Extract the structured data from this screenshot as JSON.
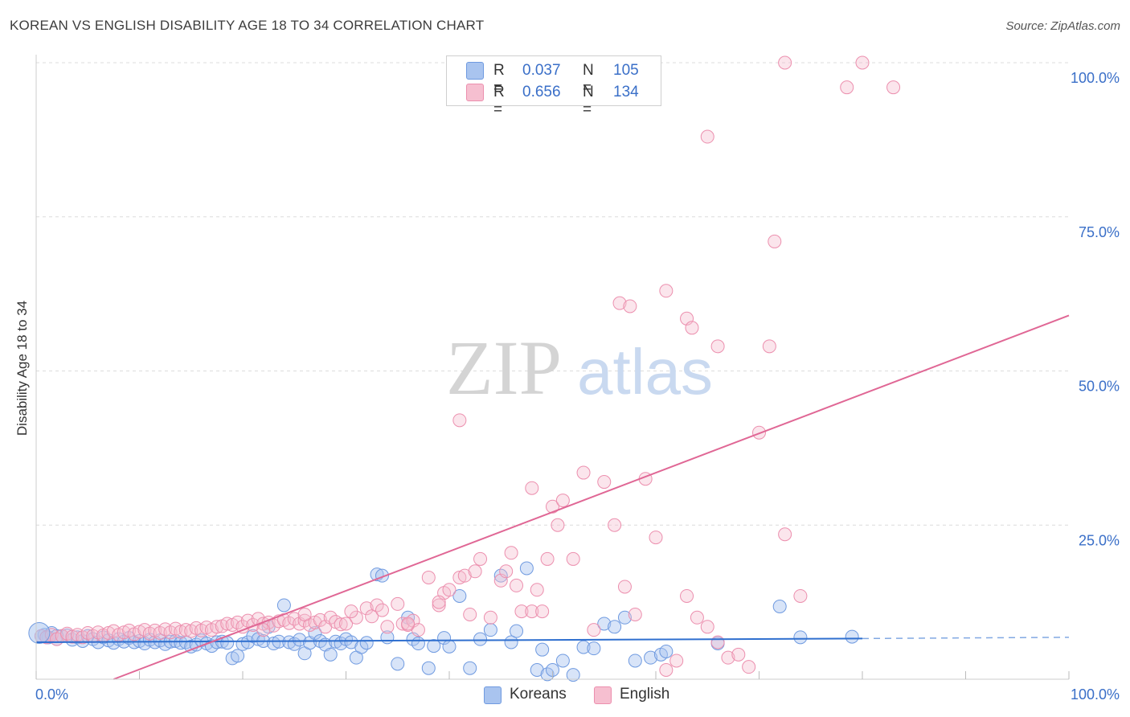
{
  "title": "KOREAN VS ENGLISH DISABILITY AGE 18 TO 34 CORRELATION CHART",
  "source": "Source: ZipAtlas.com",
  "watermark": {
    "zip": "ZIP",
    "atlas": "atlas"
  },
  "legend_top": {
    "rows": [
      {
        "r_label": "R =",
        "r_value": "0.037",
        "n_label": "N =",
        "n_value": "105",
        "color": "#a9c4ef",
        "border": "#6f9ae0"
      },
      {
        "r_label": "R =",
        "r_value": "0.656",
        "n_label": "N =",
        "n_value": "134",
        "color": "#f6bfd0",
        "border": "#ec8fae"
      }
    ]
  },
  "bottom_legend": [
    {
      "label": "Koreans",
      "color": "#a9c4ef",
      "border": "#6f9ae0"
    },
    {
      "label": "English",
      "color": "#f6bfd0",
      "border": "#ec8fae"
    }
  ],
  "colors": {
    "koreans": "#6f9ae0",
    "koreans_line": "#2f6fcf",
    "english": "#ec8fae",
    "english_line": "#e06795",
    "axis_text": "#3a6fc8",
    "grid": "#dcdcdc"
  },
  "chart_data": {
    "type": "scatter",
    "title": "KOREAN VS ENGLISH DISABILITY AGE 18 TO 34 CORRELATION CHART",
    "xlabel": "",
    "ylabel": "Disability Age 18 to 34",
    "xlim": [
      0,
      100
    ],
    "ylim": [
      0,
      100
    ],
    "x_tick_labels": [
      "0.0%",
      "100.0%"
    ],
    "y_ticks": [
      25,
      50,
      75,
      100
    ],
    "y_tick_labels": [
      "25.0%",
      "50.0%",
      "75.0%",
      "100.0%"
    ],
    "grid": true,
    "legend_position": "top-center",
    "series": [
      {
        "name": "Koreans",
        "r": 0.037,
        "n": 105,
        "trend": {
          "x0": 0,
          "y0": 6.0,
          "x1": 80,
          "y1": 6.6,
          "dashed_to_x": 100,
          "dashed_to_y": 6.8
        },
        "points": [
          [
            0.5,
            7.0
          ],
          [
            0.8,
            7.2
          ],
          [
            1.2,
            6.8
          ],
          [
            1.5,
            7.5
          ],
          [
            2.0,
            6.5
          ],
          [
            2.5,
            7.0
          ],
          [
            3.0,
            7.1
          ],
          [
            3.5,
            6.4
          ],
          [
            4.0,
            6.8
          ],
          [
            4.5,
            6.2
          ],
          [
            5.0,
            7.0
          ],
          [
            5.5,
            6.5
          ],
          [
            6.0,
            6.0
          ],
          [
            6.5,
            6.8
          ],
          [
            7.0,
            6.3
          ],
          [
            7.5,
            5.9
          ],
          [
            8.0,
            6.5
          ],
          [
            8.5,
            6.1
          ],
          [
            9.0,
            6.7
          ],
          [
            9.5,
            6.0
          ],
          [
            10.0,
            6.2
          ],
          [
            10.5,
            5.8
          ],
          [
            11.0,
            6.4
          ],
          [
            11.5,
            6.0
          ],
          [
            12.0,
            6.3
          ],
          [
            12.5,
            5.7
          ],
          [
            13.0,
            6.1
          ],
          [
            13.5,
            6.2
          ],
          [
            14.0,
            5.9
          ],
          [
            14.5,
            6.0
          ],
          [
            15.0,
            5.3
          ],
          [
            15.5,
            5.6
          ],
          [
            16.0,
            6.3
          ],
          [
            16.5,
            5.8
          ],
          [
            17.0,
            5.4
          ],
          [
            17.5,
            6.0
          ],
          [
            18.0,
            6.1
          ],
          [
            18.5,
            5.9
          ],
          [
            19.0,
            3.4
          ],
          [
            19.5,
            3.8
          ],
          [
            20.0,
            5.7
          ],
          [
            20.5,
            6.0
          ],
          [
            21.0,
            7.0
          ],
          [
            21.5,
            6.5
          ],
          [
            22.0,
            6.2
          ],
          [
            22.5,
            8.5
          ],
          [
            23.0,
            5.8
          ],
          [
            23.5,
            6.1
          ],
          [
            24.0,
            12.0
          ],
          [
            24.5,
            6.0
          ],
          [
            25.0,
            5.7
          ],
          [
            25.5,
            6.4
          ],
          [
            26.0,
            4.2
          ],
          [
            26.5,
            5.9
          ],
          [
            27.0,
            7.5
          ],
          [
            27.5,
            6.2
          ],
          [
            28.0,
            5.6
          ],
          [
            28.5,
            4.0
          ],
          [
            29.0,
            6.1
          ],
          [
            29.5,
            5.8
          ],
          [
            30.0,
            6.5
          ],
          [
            30.5,
            6.0
          ],
          [
            31.0,
            3.5
          ],
          [
            31.5,
            5.2
          ],
          [
            32.0,
            5.9
          ],
          [
            33.0,
            17.0
          ],
          [
            33.5,
            16.8
          ],
          [
            34.0,
            6.8
          ],
          [
            35.0,
            2.5
          ],
          [
            36.0,
            10.0
          ],
          [
            36.5,
            6.5
          ],
          [
            37.0,
            5.8
          ],
          [
            38.0,
            1.8
          ],
          [
            38.5,
            5.4
          ],
          [
            39.5,
            6.7
          ],
          [
            40.0,
            5.3
          ],
          [
            41.0,
            13.5
          ],
          [
            42.0,
            1.8
          ],
          [
            43.0,
            6.5
          ],
          [
            44.0,
            8.0
          ],
          [
            45.0,
            16.8
          ],
          [
            46.0,
            6.0
          ],
          [
            46.5,
            7.8
          ],
          [
            47.5,
            18.0
          ],
          [
            48.5,
            1.5
          ],
          [
            49.0,
            4.8
          ],
          [
            49.5,
            0.8
          ],
          [
            50.0,
            1.5
          ],
          [
            51.0,
            3.0
          ],
          [
            52.0,
            0.7
          ],
          [
            53.0,
            5.2
          ],
          [
            54.0,
            5.0
          ],
          [
            55.0,
            9.0
          ],
          [
            56.0,
            8.5
          ],
          [
            57.0,
            10.0
          ],
          [
            58.0,
            3.0
          ],
          [
            59.5,
            3.5
          ],
          [
            60.5,
            4.0
          ],
          [
            61.0,
            4.5
          ],
          [
            66.0,
            5.8
          ],
          [
            72.0,
            11.8
          ],
          [
            74.0,
            6.8
          ],
          [
            79.0,
            6.9
          ],
          [
            2.0,
            7.0
          ],
          [
            1.0,
            6.8
          ]
        ]
      },
      {
        "name": "English",
        "r": 0.656,
        "n": 134,
        "trend": {
          "x0": 7.5,
          "y0": 0,
          "x1": 100,
          "y1": 59
        },
        "points": [
          [
            0.5,
            7.0
          ],
          [
            1.0,
            6.8
          ],
          [
            1.5,
            7.2
          ],
          [
            2.0,
            6.5
          ],
          [
            2.5,
            7.0
          ],
          [
            3.0,
            7.4
          ],
          [
            3.5,
            6.9
          ],
          [
            4.0,
            7.2
          ],
          [
            4.5,
            6.8
          ],
          [
            5.0,
            7.5
          ],
          [
            5.5,
            7.0
          ],
          [
            6.0,
            7.6
          ],
          [
            6.5,
            7.1
          ],
          [
            7.0,
            7.5
          ],
          [
            7.5,
            7.8
          ],
          [
            8.0,
            7.2
          ],
          [
            8.5,
            7.6
          ],
          [
            9.0,
            7.9
          ],
          [
            9.5,
            7.3
          ],
          [
            10.0,
            7.7
          ],
          [
            10.5,
            8.0
          ],
          [
            11.0,
            7.4
          ],
          [
            11.5,
            7.9
          ],
          [
            12.0,
            7.5
          ],
          [
            12.5,
            8.1
          ],
          [
            13.0,
            7.6
          ],
          [
            13.5,
            8.2
          ],
          [
            14.0,
            7.7
          ],
          [
            14.5,
            8.0
          ],
          [
            15.0,
            7.8
          ],
          [
            15.5,
            8.3
          ],
          [
            16.0,
            7.9
          ],
          [
            16.5,
            8.4
          ],
          [
            17.0,
            8.0
          ],
          [
            17.5,
            8.5
          ],
          [
            18.0,
            8.6
          ],
          [
            18.5,
            9.0
          ],
          [
            19.0,
            8.8
          ],
          [
            19.5,
            9.2
          ],
          [
            20.0,
            8.5
          ],
          [
            20.5,
            9.5
          ],
          [
            21.0,
            8.8
          ],
          [
            21.5,
            9.8
          ],
          [
            22.0,
            9.0
          ],
          [
            22.5,
            9.2
          ],
          [
            23.0,
            8.7
          ],
          [
            23.5,
            9.4
          ],
          [
            24.0,
            9.6
          ],
          [
            24.5,
            9.1
          ],
          [
            25.0,
            9.8
          ],
          [
            25.5,
            9.0
          ],
          [
            26.0,
            9.5
          ],
          [
            26.5,
            8.8
          ],
          [
            27.0,
            9.2
          ],
          [
            27.5,
            9.6
          ],
          [
            28.0,
            8.5
          ],
          [
            28.5,
            10.0
          ],
          [
            29.0,
            9.3
          ],
          [
            29.5,
            8.9
          ],
          [
            30.0,
            9.0
          ],
          [
            31.0,
            10.0
          ],
          [
            32.0,
            11.5
          ],
          [
            32.5,
            10.2
          ],
          [
            33.0,
            12.0
          ],
          [
            33.5,
            11.2
          ],
          [
            34.0,
            8.5
          ],
          [
            35.0,
            12.2
          ],
          [
            35.5,
            9.0
          ],
          [
            36.0,
            8.8
          ],
          [
            36.5,
            9.5
          ],
          [
            37.0,
            8.0
          ],
          [
            38.0,
            16.5
          ],
          [
            39.0,
            12.0
          ],
          [
            39.5,
            14.0
          ],
          [
            40.0,
            14.5
          ],
          [
            41.0,
            16.5
          ],
          [
            41.5,
            16.8
          ],
          [
            42.0,
            10.5
          ],
          [
            42.5,
            17.5
          ],
          [
            43.0,
            19.5
          ],
          [
            44.0,
            10.0
          ],
          [
            45.0,
            16.0
          ],
          [
            45.5,
            17.5
          ],
          [
            46.0,
            20.5
          ],
          [
            46.5,
            15.2
          ],
          [
            47.0,
            11.0
          ],
          [
            48.0,
            11.0
          ],
          [
            48.5,
            14.5
          ],
          [
            49.0,
            11.0
          ],
          [
            49.5,
            19.5
          ],
          [
            50.0,
            28.0
          ],
          [
            50.5,
            25.0
          ],
          [
            51.0,
            29.0
          ],
          [
            52.0,
            19.5
          ],
          [
            53.0,
            33.5
          ],
          [
            54.0,
            8.0
          ],
          [
            55.0,
            32.0
          ],
          [
            56.0,
            25.0
          ],
          [
            57.0,
            15.0
          ],
          [
            58.0,
            10.5
          ],
          [
            59.0,
            32.5
          ],
          [
            60.0,
            23.0
          ],
          [
            61.0,
            1.5
          ],
          [
            62.0,
            3.0
          ],
          [
            63.0,
            13.5
          ],
          [
            64.0,
            10.0
          ],
          [
            65.0,
            8.5
          ],
          [
            66.0,
            6.0
          ],
          [
            67.0,
            3.5
          ],
          [
            68.0,
            4.0
          ],
          [
            69.0,
            2.0
          ],
          [
            70.0,
            40.0
          ],
          [
            71.0,
            54.0
          ],
          [
            72.5,
            23.5
          ],
          [
            74.0,
            13.5
          ],
          [
            22.0,
            8.0
          ],
          [
            26.0,
            10.5
          ],
          [
            30.5,
            11.0
          ],
          [
            36.0,
            9.0
          ],
          [
            39.0,
            12.5
          ],
          [
            41.0,
            42.0
          ],
          [
            48.0,
            31.0
          ],
          [
            56.5,
            61.0
          ],
          [
            57.5,
            60.5
          ],
          [
            61.0,
            63.0
          ],
          [
            63.0,
            58.5
          ],
          [
            63.5,
            57.0
          ],
          [
            66.0,
            54.0
          ],
          [
            65.0,
            88.0
          ],
          [
            71.5,
            71.0
          ],
          [
            72.5,
            100.0
          ],
          [
            78.5,
            96.0
          ],
          [
            80.0,
            100.0
          ],
          [
            83.0,
            96.0
          ]
        ]
      }
    ]
  }
}
